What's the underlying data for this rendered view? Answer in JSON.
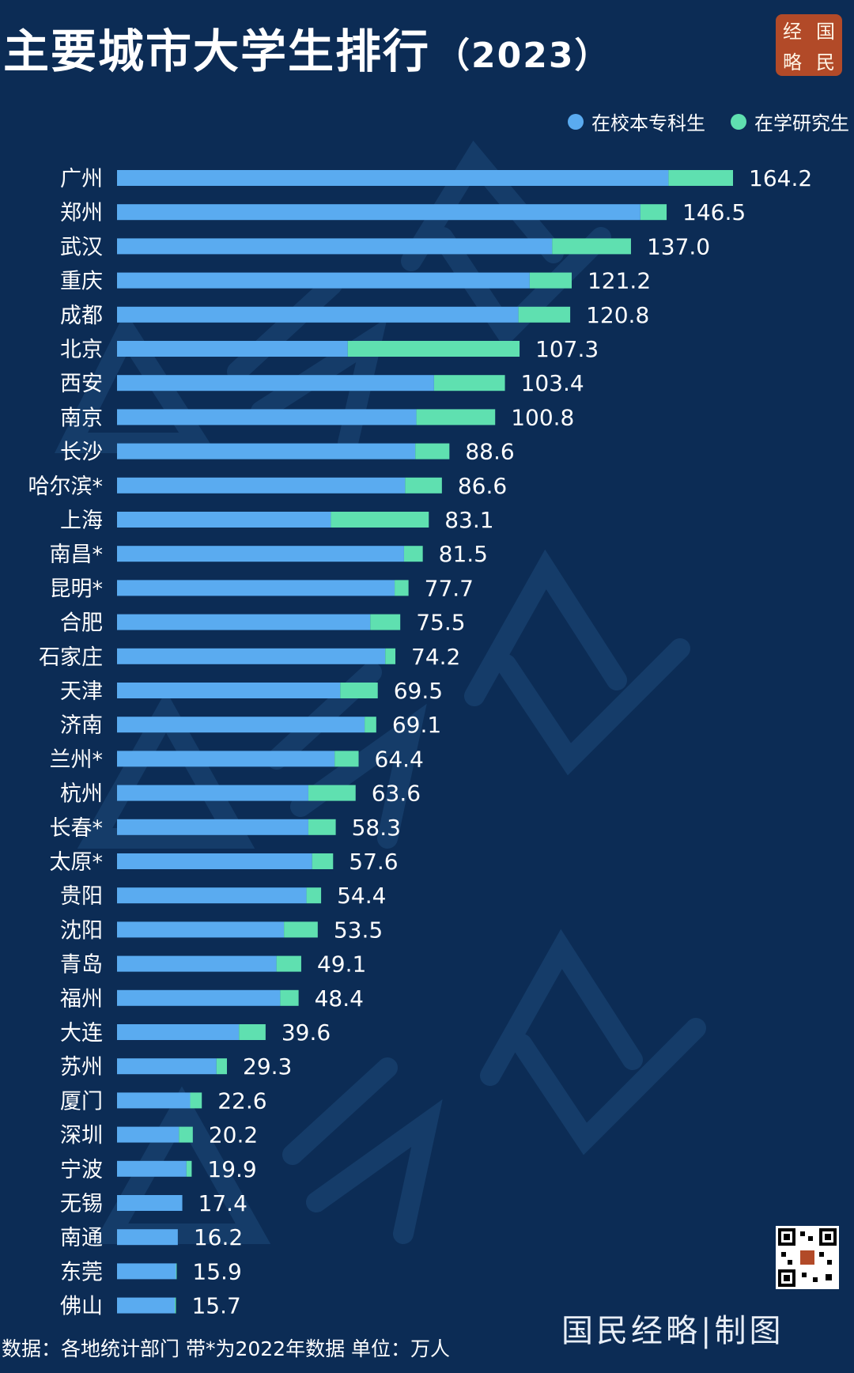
{
  "title": {
    "main": "主要城市大学生排行",
    "year": "（2023）"
  },
  "logo": {
    "chars": [
      "经",
      "国",
      "略",
      "民"
    ]
  },
  "legend": [
    {
      "label": "在校本专科生",
      "color": "#5aabf0"
    },
    {
      "label": "在学研究生",
      "color": "#5fe0b0"
    }
  ],
  "footer": {
    "source": "数据：各地统计部门  带*为2022年数据  单位：万人",
    "signature": "国民经略|制图"
  },
  "chart_data": {
    "type": "bar",
    "orientation": "horizontal",
    "stacked": true,
    "unit": "万人",
    "categories": [
      "广州",
      "郑州",
      "武汉",
      "重庆",
      "成都",
      "北京",
      "西安",
      "南京",
      "长沙",
      "哈尔滨*",
      "上海",
      "南昌*",
      "昆明*",
      "合肥",
      "石家庄",
      "天津",
      "济南",
      "兰州*",
      "杭州",
      "长春*",
      "太原*",
      "贵阳",
      "沈阳",
      "青岛",
      "福州",
      "大连",
      "苏州",
      "厦门",
      "深圳",
      "宁波",
      "无锡",
      "南通",
      "东莞",
      "佛山"
    ],
    "series": [
      {
        "name": "在校本专科生",
        "color": "#5aabf0",
        "values": [
          147.0,
          139.5,
          116.0,
          110.0,
          107.0,
          61.5,
          84.5,
          79.8,
          79.5,
          76.8,
          57.0,
          76.5,
          74.0,
          67.5,
          71.5,
          59.5,
          66.0,
          58.0,
          51.0,
          51.0,
          52.0,
          50.5,
          44.5,
          42.5,
          43.5,
          32.5,
          26.5,
          19.5,
          16.5,
          18.5,
          17.4,
          16.2,
          15.7,
          15.4
        ]
      },
      {
        "name": "在学研究生",
        "color": "#5fe0b0",
        "values": [
          17.2,
          7.0,
          21.0,
          11.2,
          13.8,
          45.8,
          18.9,
          21.0,
          9.1,
          9.8,
          26.1,
          5.0,
          3.7,
          8.0,
          2.7,
          10.0,
          3.1,
          6.4,
          12.6,
          7.3,
          5.6,
          3.9,
          9.0,
          6.6,
          4.9,
          7.1,
          2.8,
          3.1,
          3.7,
          1.4,
          0.0,
          0.0,
          0.2,
          0.3
        ]
      }
    ],
    "totals": [
      "164.2",
      "146.5",
      "137.0",
      "121.2",
      "120.8",
      "107.3",
      "103.4",
      "100.8",
      "88.6",
      "86.6",
      "83.1",
      "81.5",
      "77.7",
      "75.5",
      "74.2",
      "69.5",
      "69.1",
      "64.4",
      "63.6",
      "58.3",
      "57.6",
      "54.4",
      "53.5",
      "49.1",
      "48.4",
      "39.6",
      "29.3",
      "22.6",
      "20.2",
      "19.9",
      "17.4",
      "16.2",
      "15.9",
      "15.7"
    ],
    "xlim": [
      0,
      164.2
    ],
    "grid": false,
    "legend_position": "top-right"
  }
}
